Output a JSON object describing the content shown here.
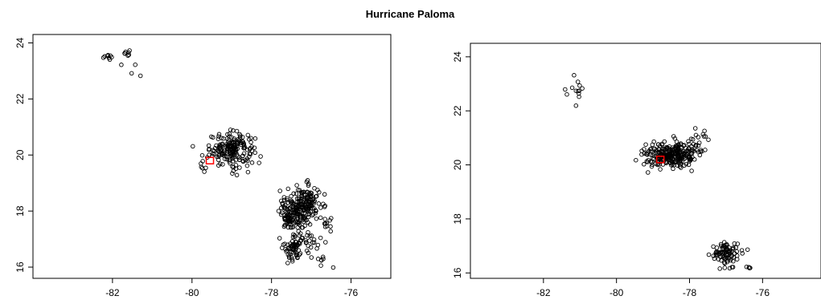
{
  "title": "Hurricane Paloma",
  "chart_data": [
    {
      "type": "scatter",
      "title": "",
      "xlabel": "",
      "ylabel": "",
      "xlim": [
        -84,
        -75
      ],
      "ylim": [
        15.6,
        24.3
      ],
      "xticks": [
        -82,
        -80,
        -78,
        -76
      ],
      "yticks": [
        16,
        18,
        20,
        22,
        24
      ],
      "grid": false,
      "marker_color": "#000000",
      "highlight_color": "#ff0000",
      "highlight": {
        "x": -79.55,
        "y": 19.8
      },
      "clusters": [
        {
          "cx": -82.1,
          "cy": 23.5,
          "sx": 0.06,
          "sy": 0.08,
          "n": 8
        },
        {
          "cx": -81.65,
          "cy": 23.65,
          "sx": 0.04,
          "sy": 0.05,
          "n": 7
        },
        {
          "cx": -81.4,
          "cy": 23.1,
          "sx": 0.15,
          "sy": 0.2,
          "n": 4
        },
        {
          "cx": -79.0,
          "cy": 20.2,
          "sx": 0.28,
          "sy": 0.3,
          "n": 190
        },
        {
          "cx": -79.7,
          "cy": 19.75,
          "sx": 0.12,
          "sy": 0.15,
          "n": 8
        },
        {
          "cx": -77.5,
          "cy": 17.9,
          "sx": 0.15,
          "sy": 0.3,
          "n": 110
        },
        {
          "cx": -77.15,
          "cy": 18.2,
          "sx": 0.18,
          "sy": 0.35,
          "n": 150
        },
        {
          "cx": -77.45,
          "cy": 16.7,
          "sx": 0.12,
          "sy": 0.25,
          "n": 60
        },
        {
          "cx": -77.1,
          "cy": 17.0,
          "sx": 0.2,
          "sy": 0.2,
          "n": 25
        },
        {
          "cx": -76.8,
          "cy": 16.3,
          "sx": 0.12,
          "sy": 0.15,
          "n": 8
        },
        {
          "cx": -76.6,
          "cy": 17.6,
          "sx": 0.1,
          "sy": 0.15,
          "n": 10
        }
      ]
    },
    {
      "type": "scatter",
      "title": "",
      "xlabel": "",
      "ylabel": "",
      "xlim": [
        -84,
        -74.4
      ],
      "ylim": [
        15.8,
        24.5
      ],
      "xticks": [
        -82,
        -80,
        -78,
        -76
      ],
      "yticks": [
        16,
        18,
        20,
        22,
        24
      ],
      "grid": false,
      "marker_color": "#000000",
      "highlight_color": "#ff0000",
      "highlight": {
        "x": -78.8,
        "y": 20.2
      },
      "clusters": [
        {
          "cx": -81.05,
          "cy": 22.6,
          "sx": 0.05,
          "sy": 0.25,
          "n": 10
        },
        {
          "cx": -81.3,
          "cy": 22.8,
          "sx": 0.08,
          "sy": 0.15,
          "n": 3
        },
        {
          "cx": -78.5,
          "cy": 20.35,
          "sx": 0.35,
          "sy": 0.22,
          "n": 260
        },
        {
          "cx": -77.9,
          "cy": 20.9,
          "sx": 0.25,
          "sy": 0.25,
          "n": 25
        },
        {
          "cx": -77.0,
          "cy": 16.7,
          "sx": 0.18,
          "sy": 0.2,
          "n": 90
        },
        {
          "cx": -76.4,
          "cy": 16.2,
          "sx": 0.04,
          "sy": 0.02,
          "n": 4
        }
      ]
    }
  ]
}
